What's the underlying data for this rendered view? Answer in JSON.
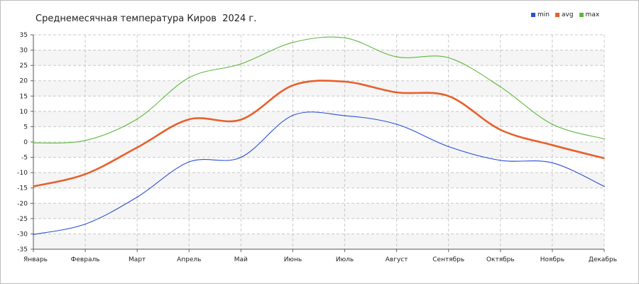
{
  "chart_data": {
    "type": "line",
    "title": "Среднемесячная температура Киров  2024 г.",
    "categories": [
      "Январь",
      "Февраль",
      "Март",
      "Апрель",
      "Май",
      "Июнь",
      "Июль",
      "Август",
      "Сентябрь",
      "Октябрь",
      "Ноябрь",
      "Декабрь"
    ],
    "ylim": [
      -35,
      35
    ],
    "yticks": [
      35,
      30,
      25,
      20,
      15,
      10,
      5,
      0,
      -5,
      -10,
      -15,
      -20,
      -25,
      -30,
      -35
    ],
    "grid": true,
    "legend_position": "top-right",
    "series": [
      {
        "name": "min",
        "color": "#2a4fd6",
        "values": [
          -30.2,
          -26.8,
          -18.0,
          -6.5,
          -5.0,
          8.7,
          8.6,
          5.8,
          -1.5,
          -6.0,
          -6.8,
          -14.5
        ]
      },
      {
        "name": "avg",
        "color": "#e8602c",
        "values": [
          -14.5,
          -10.5,
          -1.8,
          7.4,
          7.3,
          18.5,
          19.7,
          16.2,
          15.0,
          4.0,
          -1.0,
          -5.3
        ]
      },
      {
        "name": "max",
        "color": "#5fb83f",
        "values": [
          -0.3,
          0.5,
          7.5,
          21.0,
          25.5,
          32.5,
          34.0,
          27.8,
          27.5,
          18.0,
          5.8,
          1.0
        ]
      }
    ]
  }
}
